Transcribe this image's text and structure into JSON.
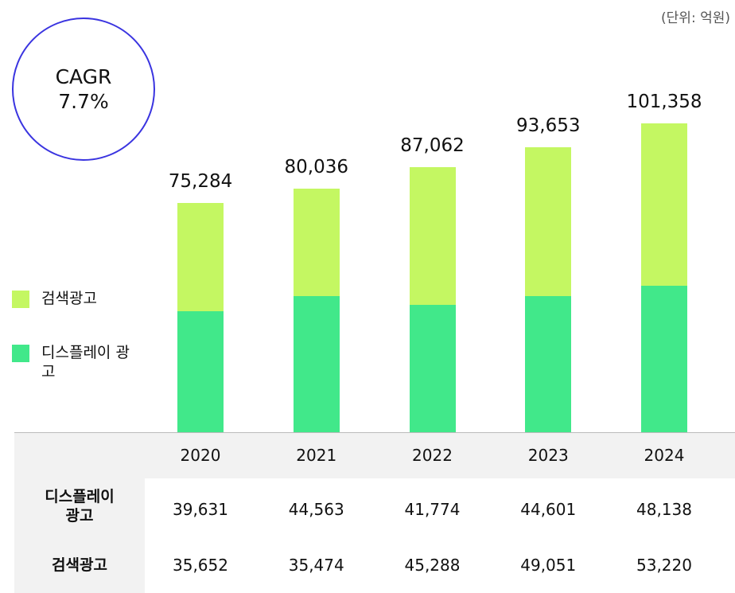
{
  "chart_data": {
    "type": "bar",
    "stacked": true,
    "unit_note": "(단위: 억원)",
    "annotation": {
      "title": "CAGR",
      "value": "7.7%"
    },
    "categories": [
      "2020",
      "2021",
      "2022",
      "2023",
      "2024"
    ],
    "series": [
      {
        "name": "디스플레이 광고",
        "color": "#41e88a",
        "values": [
          39631,
          44563,
          41774,
          44601,
          48138
        ],
        "value_labels": [
          "39,631",
          "44,563",
          "41,774",
          "44,601",
          "48,138"
        ]
      },
      {
        "name": "검색광고",
        "color": "#c4f762",
        "values": [
          35652,
          35474,
          45288,
          49051,
          53220
        ],
        "value_labels": [
          "35,652",
          "35,474",
          "45,288",
          "49,051",
          "53,220"
        ]
      }
    ],
    "totals": {
      "values": [
        75284,
        80036,
        87062,
        93653,
        101358
      ],
      "value_labels": [
        "75,284",
        "80,036",
        "87,062",
        "93,653",
        "101,358"
      ]
    },
    "ylim": [
      0,
      110000
    ]
  }
}
